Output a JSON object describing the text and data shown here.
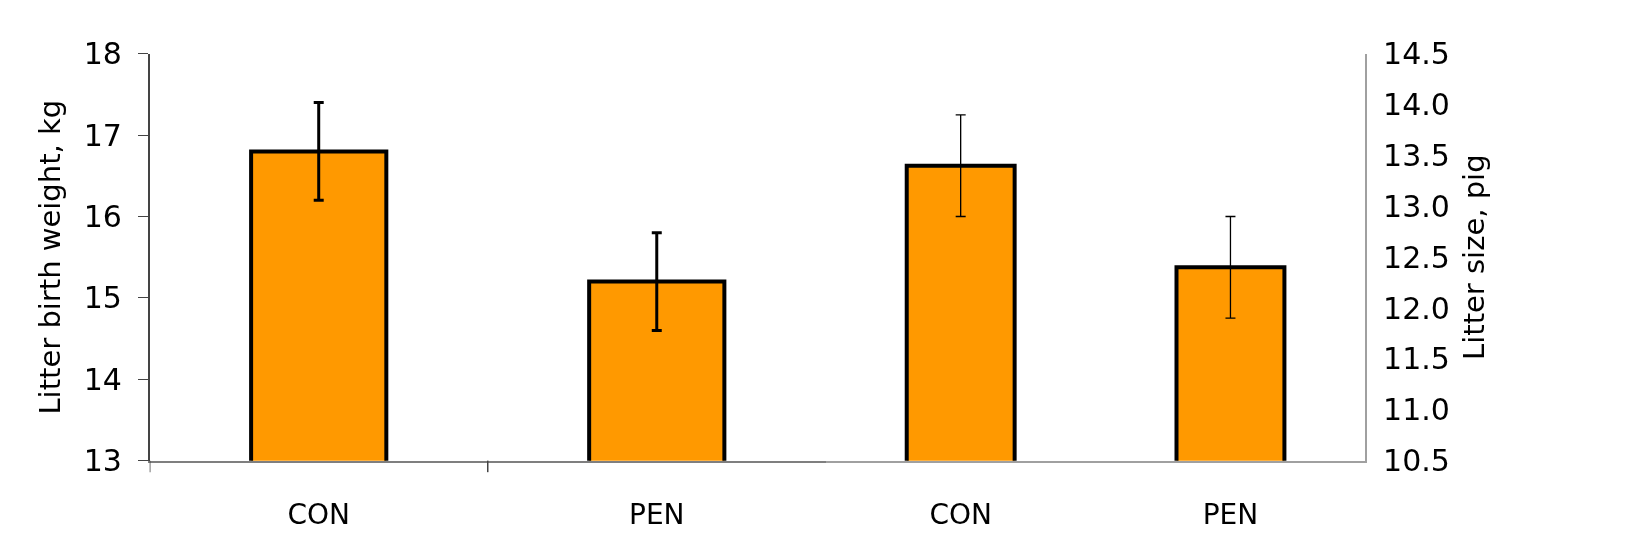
{
  "chart_data": [
    {
      "type": "bar",
      "categories": [
        "CON",
        "PEN"
      ],
      "ylabel": "Litter birth weight, kg",
      "ylim": [
        13,
        18
      ],
      "yticks": [
        13,
        14,
        15,
        16,
        17,
        18
      ],
      "series": [
        {
          "color": "#ff9900",
          "values": [
            16.8,
            15.2
          ],
          "errors": [
            0.6,
            0.6
          ]
        }
      ]
    },
    {
      "type": "bar",
      "categories": [
        "CON",
        "PEN"
      ],
      "y2label": "Litter size, pig",
      "y2lim": [
        10.5,
        14.5
      ],
      "y2ticks": [
        10.5,
        {
          "value": 11,
          "label": "11.0"
        },
        11.5,
        {
          "value": 12,
          "label": "12.0"
        },
        12.5,
        {
          "value": 13,
          "label": "13.0"
        },
        13.5,
        {
          "value": 14,
          "label": "14.0"
        },
        14.5
      ],
      "series": [
        {
          "color": "#ff9900",
          "values": [
            13.4,
            12.4
          ],
          "errors": [
            0.5,
            0.5
          ],
          "axis": "y2"
        }
      ]
    }
  ]
}
